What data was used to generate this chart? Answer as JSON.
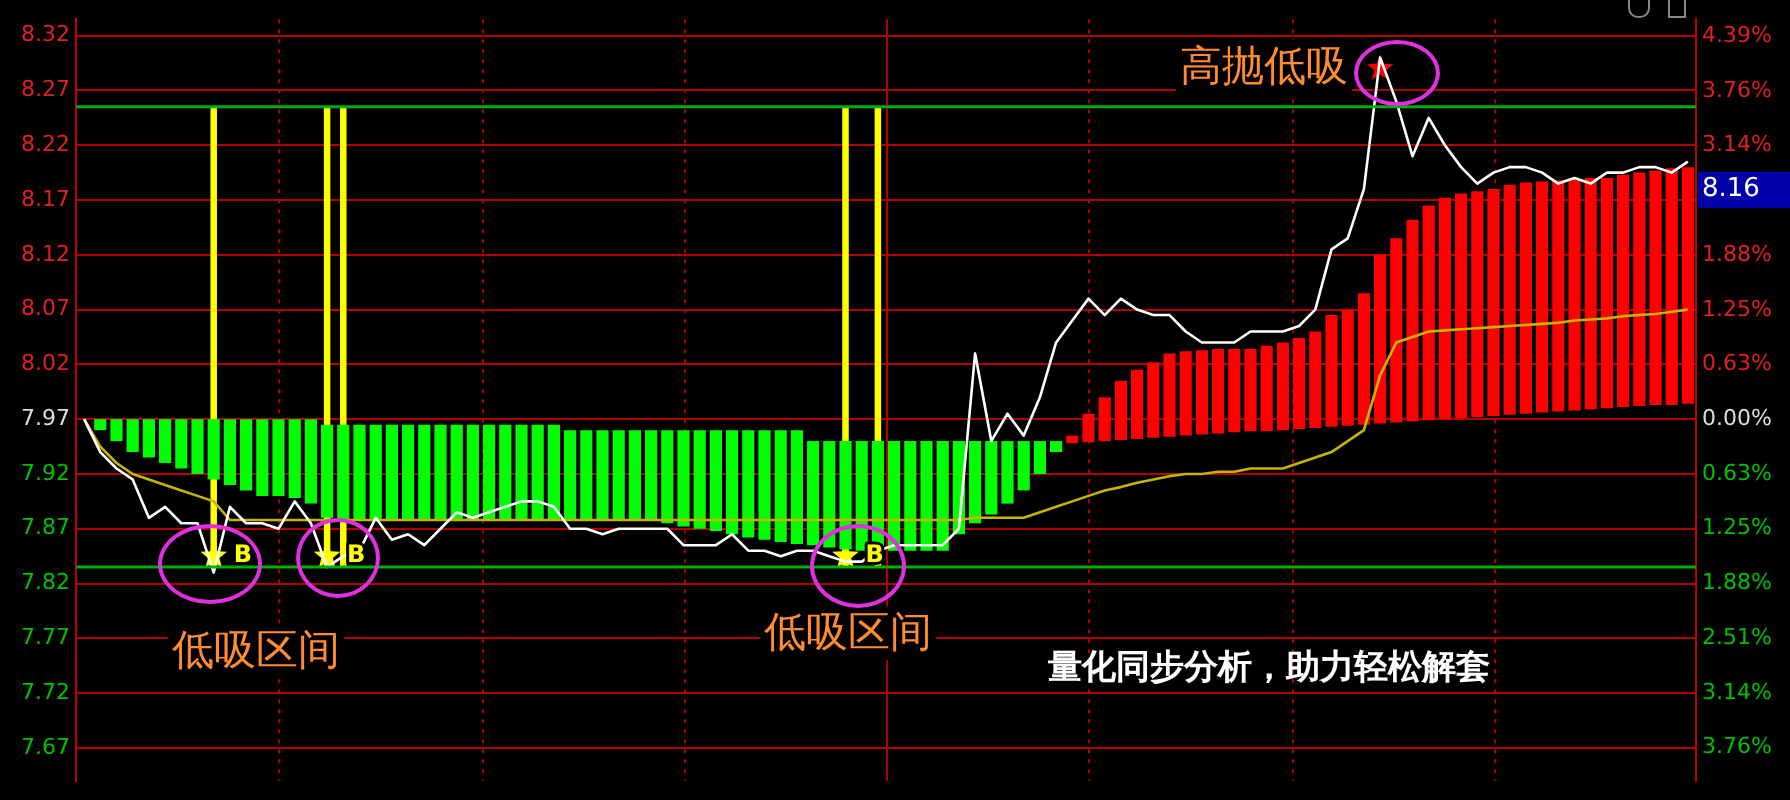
{
  "chart_data": {
    "type": "line",
    "categories": [
      null,
      null,
      null,
      null,
      null,
      null,
      null,
      null,
      null,
      null,
      null,
      null,
      null,
      null,
      null,
      null,
      null,
      null,
      null,
      null,
      null,
      null,
      null,
      null,
      null,
      null,
      null,
      null,
      null,
      null,
      null,
      null,
      null,
      null,
      null,
      null,
      null,
      null,
      null,
      null,
      null,
      null,
      null,
      null,
      null,
      null,
      null,
      null,
      null,
      null,
      null,
      null,
      null,
      null,
      null,
      null,
      null,
      null,
      null,
      null,
      null,
      null,
      null,
      null,
      null,
      null,
      null,
      null,
      null,
      null,
      null,
      null,
      null,
      null,
      null,
      null,
      null,
      null,
      null,
      null,
      null,
      null,
      null,
      null,
      null,
      null,
      null,
      null,
      null,
      null,
      null,
      null,
      null,
      null,
      null,
      null,
      null,
      null,
      null,
      null
    ],
    "ylim": [
      7.64,
      8.335
    ],
    "yticks": [
      7.67,
      7.72,
      7.77,
      7.82,
      7.87,
      7.92,
      7.97,
      8.02,
      8.07,
      8.12,
      8.17,
      8.22,
      8.27,
      8.32
    ],
    "y2lim": [
      -4.14,
      4.58
    ],
    "y2ticks": [
      {
        "value": -3.76,
        "label": "3.76%"
      },
      {
        "value": -3.14,
        "label": "3.14%"
      },
      {
        "value": -2.51,
        "label": "2.51%"
      },
      {
        "value": -1.88,
        "label": "1.88%"
      },
      {
        "value": -1.25,
        "label": "1.25%"
      },
      {
        "value": -0.63,
        "label": "0.63%"
      },
      {
        "value": 0,
        "label": "0.00%"
      },
      {
        "value": 0.63,
        "label": "0.63%"
      },
      {
        "value": 1.25,
        "label": "1.25%"
      },
      {
        "value": 1.88,
        "label": "1.88%"
      },
      {
        "value": 3.14,
        "label": "3.14%"
      },
      {
        "value": 3.76,
        "label": "3.76%"
      },
      {
        "value": 4.39,
        "label": "4.39%"
      }
    ],
    "grid": true,
    "legend": false,
    "tick_labels": "y",
    "ref_lines": [
      {
        "axis": "y",
        "value": 8.255,
        "color": "#00b000"
      },
      {
        "axis": "y",
        "value": 7.835,
        "color": "#00b000"
      }
    ],
    "annotations": [
      "高抛低吸",
      "低吸区间",
      "低吸区间",
      "量化同步分析，助力轻松解套",
      "8.16"
    ],
    "series": [
      {
        "type": "bar",
        "color": "#00ff00",
        "base": [
          null,
          7.96,
          7.95,
          7.94,
          7.935,
          7.93,
          7.925,
          7.92,
          7.915,
          7.91,
          7.905,
          7.9,
          7.9,
          7.898,
          7.893,
          7.88,
          7.878,
          7.878,
          7.878,
          7.878,
          7.878,
          7.878,
          7.878,
          7.878,
          7.878,
          7.878,
          7.878,
          7.878,
          7.878,
          7.878,
          7.878,
          7.878,
          7.878,
          7.878,
          7.878,
          7.878,
          7.875,
          7.872,
          7.87,
          7.868,
          7.865,
          7.862,
          7.86,
          7.858,
          7.856,
          7.855,
          7.853,
          7.851,
          7.85,
          7.85,
          7.85,
          7.85,
          7.85,
          7.85,
          7.865,
          7.875,
          7.883,
          7.893,
          7.905,
          7.92,
          7.94,
          null,
          null,
          null,
          null,
          null,
          null,
          null,
          null,
          null,
          null,
          null,
          null,
          null,
          null,
          null,
          null,
          null,
          null,
          null,
          null,
          null,
          null,
          null,
          null,
          null,
          null,
          null,
          null,
          null,
          null,
          null,
          null,
          null,
          null,
          null,
          null,
          null,
          null,
          null
        ],
        "values": [
          null,
          0.01,
          0.02,
          0.03,
          0.035,
          0.04,
          0.045,
          0.05,
          0.055,
          0.06,
          0.065,
          0.07,
          0.07,
          0.072,
          0.077,
          0.085,
          0.087,
          0.087,
          0.087,
          0.087,
          0.087,
          0.087,
          0.087,
          0.087,
          0.087,
          0.087,
          0.087,
          0.087,
          0.087,
          0.087,
          0.082,
          0.082,
          0.082,
          0.082,
          0.082,
          0.082,
          0.085,
          0.088,
          0.09,
          0.092,
          0.095,
          0.098,
          0.1,
          0.102,
          0.104,
          0.095,
          0.097,
          0.099,
          0.1,
          0.1,
          0.1,
          0.1,
          0.1,
          0.1,
          0.085,
          0.075,
          0.067,
          0.057,
          0.045,
          0.03,
          0.01,
          null,
          null,
          null,
          null,
          null,
          null,
          null,
          null,
          null,
          null,
          null,
          null,
          null,
          null,
          null,
          null,
          null,
          null,
          null,
          null,
          null,
          null,
          null,
          null,
          null,
          null,
          null,
          null,
          null,
          null,
          null,
          null,
          null,
          null,
          null,
          null,
          null,
          null,
          null
        ]
      },
      {
        "type": "bar",
        "color": "#ff0000",
        "base": [
          null,
          null,
          null,
          null,
          null,
          null,
          null,
          null,
          null,
          null,
          null,
          null,
          null,
          null,
          null,
          null,
          null,
          null,
          null,
          null,
          null,
          null,
          null,
          null,
          null,
          null,
          null,
          null,
          null,
          null,
          null,
          null,
          null,
          null,
          null,
          null,
          null,
          null,
          null,
          null,
          null,
          null,
          null,
          null,
          null,
          null,
          null,
          null,
          null,
          null,
          null,
          null,
          null,
          null,
          null,
          null,
          null,
          null,
          null,
          null,
          null,
          7.948,
          7.949,
          7.95,
          7.951,
          7.952,
          7.953,
          7.954,
          7.955,
          7.956,
          7.957,
          7.958,
          7.959,
          7.959,
          7.96,
          7.961,
          7.962,
          7.963,
          7.964,
          7.965,
          7.966,
          7.967,
          7.968,
          7.969,
          7.97,
          7.971,
          7.972,
          7.973,
          7.974,
          7.975,
          7.976,
          7.977,
          7.978,
          7.979,
          7.98,
          7.981,
          7.982,
          7.983,
          7.983,
          7.984
        ],
        "values": [
          null,
          null,
          null,
          null,
          null,
          null,
          null,
          null,
          null,
          null,
          null,
          null,
          null,
          null,
          null,
          null,
          null,
          null,
          null,
          null,
          null,
          null,
          null,
          null,
          null,
          null,
          null,
          null,
          null,
          null,
          null,
          null,
          null,
          null,
          null,
          null,
          null,
          null,
          null,
          null,
          null,
          null,
          null,
          null,
          null,
          null,
          null,
          null,
          null,
          null,
          null,
          null,
          null,
          null,
          null,
          null,
          null,
          null,
          null,
          null,
          null,
          0.007,
          0.026,
          0.04,
          0.054,
          0.063,
          0.069,
          0.076,
          0.077,
          0.077,
          0.077,
          0.076,
          0.075,
          0.078,
          0.08,
          0.083,
          0.088,
          0.102,
          0.106,
          0.12,
          0.154,
          0.168,
          0.184,
          0.196,
          0.202,
          0.205,
          0.206,
          0.207,
          0.21,
          0.211,
          0.211,
          0.211,
          0.211,
          0.211,
          0.21,
          0.212,
          0.213,
          0.214,
          0.216,
          0.216
        ]
      },
      {
        "type": "bar",
        "color": "#ffff00",
        "base": [
          null,
          null,
          null,
          null,
          null,
          null,
          null,
          null,
          7.835,
          null,
          null,
          null,
          null,
          null,
          null,
          7.835,
          7.835,
          null,
          null,
          null,
          null,
          null,
          null,
          null,
          null,
          null,
          null,
          null,
          null,
          null,
          null,
          null,
          null,
          null,
          null,
          null,
          null,
          null,
          null,
          null,
          null,
          null,
          null,
          null,
          null,
          null,
          null,
          7.835,
          null,
          7.835,
          null,
          null,
          null,
          null,
          null,
          null,
          null,
          null,
          null,
          null,
          null,
          null,
          null,
          null,
          null,
          null,
          null,
          null,
          null,
          null,
          null,
          null,
          null,
          null,
          null,
          null,
          null,
          null,
          null,
          null,
          null,
          null,
          null,
          null,
          null,
          null,
          null,
          null,
          null,
          null,
          null,
          null,
          null,
          null,
          null,
          null,
          null,
          null,
          null,
          null
        ],
        "values": [
          null,
          null,
          null,
          null,
          null,
          null,
          null,
          null,
          0.42,
          null,
          null,
          null,
          null,
          null,
          null,
          0.42,
          0.42,
          null,
          null,
          null,
          null,
          null,
          null,
          null,
          null,
          null,
          null,
          null,
          null,
          null,
          null,
          null,
          null,
          null,
          null,
          null,
          null,
          null,
          null,
          null,
          null,
          null,
          null,
          null,
          null,
          null,
          null,
          0.42,
          null,
          0.42,
          null,
          null,
          null,
          null,
          null,
          null,
          null,
          null,
          null,
          null,
          null,
          null,
          null,
          null,
          null,
          null,
          null,
          null,
          null,
          null,
          null,
          null,
          null,
          null,
          null,
          null,
          null,
          null,
          null,
          null,
          null,
          null,
          null,
          null,
          null,
          null,
          null,
          null,
          null,
          null,
          null,
          null,
          null,
          null,
          null,
          null,
          null,
          null,
          null,
          null
        ]
      },
      {
        "color": "#ffffff",
        "values": [
          7.97,
          7.94,
          7.925,
          7.915,
          7.88,
          7.89,
          7.875,
          7.875,
          7.83,
          7.89,
          7.875,
          7.875,
          7.87,
          7.895,
          7.875,
          7.835,
          7.845,
          7.85,
          7.88,
          7.86,
          7.865,
          7.855,
          7.87,
          7.885,
          7.88,
          7.885,
          7.89,
          7.895,
          7.895,
          7.89,
          7.87,
          7.87,
          7.865,
          7.87,
          7.87,
          7.87,
          7.87,
          7.855,
          7.855,
          7.855,
          7.865,
          7.85,
          7.85,
          7.845,
          7.85,
          7.85,
          7.845,
          7.84,
          7.84,
          7.85,
          7.855,
          7.855,
          7.855,
          7.855,
          7.87,
          8.03,
          7.95,
          7.975,
          7.955,
          7.99,
          8.04,
          8.06,
          8.08,
          8.065,
          8.08,
          8.07,
          8.065,
          8.065,
          8.05,
          8.04,
          8.04,
          8.04,
          8.05,
          8.05,
          8.05,
          8.055,
          8.07,
          8.125,
          8.135,
          8.18,
          8.3,
          8.26,
          8.21,
          8.245,
          8.22,
          8.2,
          8.185,
          8.195,
          8.2,
          8.2,
          8.195,
          8.185,
          8.19,
          8.185,
          8.195,
          8.195,
          8.2,
          8.2,
          8.195,
          8.205
        ]
      },
      {
        "color": "#c8b400",
        "values": [
          7.97,
          7.945,
          7.93,
          7.92,
          7.915,
          7.91,
          7.905,
          7.9,
          7.895,
          7.878,
          7.878,
          7.878,
          7.878,
          7.878,
          7.878,
          7.878,
          7.878,
          7.878,
          7.878,
          7.878,
          7.878,
          7.878,
          7.878,
          7.878,
          7.878,
          7.878,
          7.878,
          7.878,
          7.878,
          7.878,
          7.878,
          7.878,
          7.878,
          7.878,
          7.878,
          7.878,
          7.878,
          7.878,
          7.878,
          7.878,
          7.878,
          7.878,
          7.878,
          7.878,
          7.878,
          7.878,
          7.878,
          7.878,
          7.878,
          7.878,
          7.878,
          7.878,
          7.878,
          7.878,
          7.878,
          7.88,
          7.88,
          7.88,
          7.88,
          7.885,
          7.89,
          7.895,
          7.9,
          7.905,
          7.908,
          7.912,
          7.915,
          7.918,
          7.92,
          7.92,
          7.922,
          7.922,
          7.925,
          7.925,
          7.925,
          7.93,
          7.935,
          7.94,
          7.95,
          7.96,
          8.01,
          8.04,
          8.045,
          8.05,
          8.051,
          8.052,
          8.053,
          8.054,
          8.055,
          8.056,
          8.057,
          8.058,
          8.06,
          8.061,
          8.062,
          8.064,
          8.065,
          8.066,
          8.068,
          8.07
        ]
      },
      {
        "type": "scatter",
        "color": "#ffff00",
        "marker": "star",
        "values": [
          null,
          null,
          null,
          null,
          null,
          null,
          null,
          null,
          7.845,
          null,
          null,
          null,
          null,
          null,
          null,
          7.845,
          null,
          null,
          null,
          null,
          null,
          null,
          null,
          null,
          null,
          null,
          null,
          null,
          null,
          null,
          null,
          null,
          null,
          null,
          null,
          null,
          null,
          null,
          null,
          null,
          null,
          null,
          null,
          null,
          null,
          null,
          null,
          7.845,
          null,
          null,
          null,
          null,
          null,
          null,
          null,
          null,
          null,
          null,
          null,
          null,
          null,
          null,
          null,
          null,
          null,
          null,
          null,
          null,
          null,
          null,
          null,
          null,
          null,
          null,
          null,
          null,
          null,
          null,
          null,
          null,
          null,
          null,
          null,
          null,
          null,
          null,
          null,
          null,
          null,
          null,
          null,
          null,
          null,
          null,
          null,
          null,
          null,
          null,
          null,
          null
        ],
        "value_labels": [
          null,
          null,
          null,
          null,
          null,
          null,
          null,
          null,
          "B",
          null,
          null,
          null,
          null,
          null,
          null,
          "B",
          null,
          null,
          null,
          null,
          null,
          null,
          null,
          null,
          null,
          null,
          null,
          null,
          null,
          null,
          null,
          null,
          null,
          null,
          null,
          null,
          null,
          null,
          null,
          null,
          null,
          null,
          null,
          null,
          null,
          null,
          null,
          "B",
          null,
          null,
          null,
          null,
          null,
          null,
          null,
          null,
          null,
          null,
          null,
          null,
          null,
          null,
          null,
          null,
          null,
          null,
          null,
          null,
          null,
          null,
          null,
          null,
          null,
          null,
          null,
          null,
          null,
          null,
          null,
          null,
          null,
          null,
          null,
          null,
          null,
          null,
          null,
          null,
          null,
          null,
          null,
          null,
          null,
          null,
          null,
          null,
          null,
          null,
          null,
          null
        ]
      },
      {
        "type": "scatter",
        "color": "#ff0000",
        "marker": "star",
        "values": [
          null,
          null,
          null,
          null,
          null,
          null,
          null,
          null,
          null,
          null,
          null,
          null,
          null,
          null,
          null,
          null,
          null,
          null,
          null,
          null,
          null,
          null,
          null,
          null,
          null,
          null,
          null,
          null,
          null,
          null,
          null,
          null,
          null,
          null,
          null,
          null,
          null,
          null,
          null,
          null,
          null,
          null,
          null,
          null,
          null,
          null,
          null,
          null,
          null,
          null,
          null,
          null,
          null,
          null,
          null,
          null,
          null,
          null,
          null,
          null,
          null,
          null,
          null,
          null,
          null,
          null,
          null,
          null,
          null,
          null,
          null,
          null,
          null,
          null,
          null,
          null,
          null,
          null,
          null,
          null,
          8.29,
          null,
          null,
          null,
          null,
          null,
          null,
          null,
          null,
          null,
          null,
          null,
          null,
          null,
          null,
          null,
          null,
          null,
          null,
          null
        ]
      }
    ]
  }
}
